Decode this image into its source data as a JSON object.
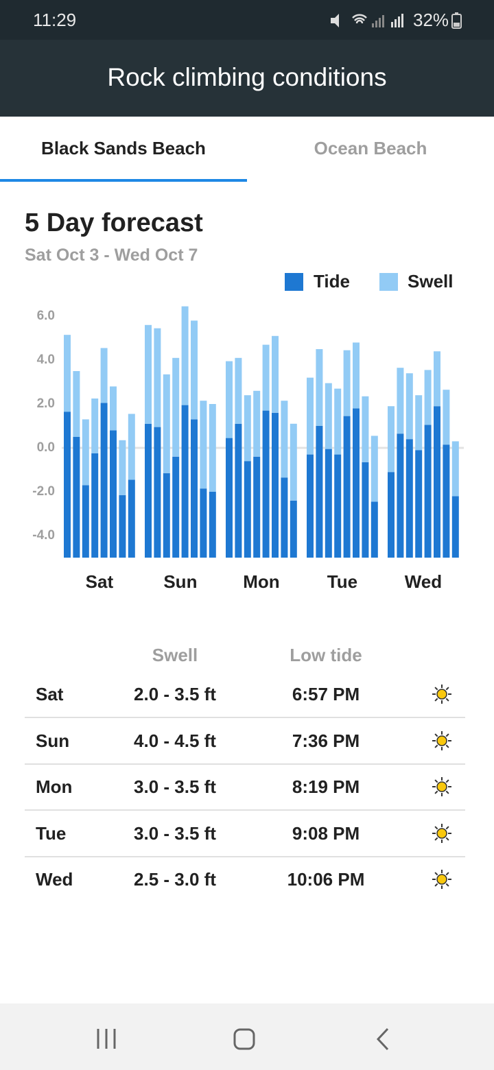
{
  "status_bar": {
    "time": "11:29",
    "battery": "32%"
  },
  "app_bar": {
    "title": "Rock climbing conditions"
  },
  "tabs": [
    "Black Sands Beach",
    "Ocean Beach"
  ],
  "chart_data": {
    "type": "stacked-bar",
    "title": "5 Day forecast",
    "subtitle": "Sat Oct 3 - Wed Oct 7",
    "categories": [
      null,
      null,
      null,
      null,
      "Sat",
      null,
      null,
      null,
      null,
      null,
      null,
      null,
      "Sun",
      null,
      null,
      null,
      null,
      null,
      null,
      null,
      "Mon",
      null,
      null,
      null,
      null,
      null,
      null,
      null,
      "Tue",
      null,
      null,
      null,
      null,
      null,
      null,
      null,
      "Wed",
      null,
      null,
      null
    ],
    "series": [
      {
        "name": "Tide",
        "color": "#1e78d2",
        "values": [
          1.65,
          0.5,
          -1.7,
          -0.25,
          2.05,
          0.8,
          -2.15,
          -1.45,
          1.1,
          0.95,
          -1.15,
          -0.4,
          1.95,
          1.3,
          -1.85,
          -2.0,
          0.45,
          1.1,
          -0.6,
          -0.4,
          1.7,
          1.6,
          -1.35,
          -2.4,
          -0.3,
          1.0,
          -0.05,
          -0.3,
          1.45,
          1.8,
          -0.65,
          -2.45,
          -1.1,
          0.65,
          0.4,
          -0.1,
          1.05,
          1.9,
          0.15,
          -2.2
        ]
      },
      {
        "name": "Swell",
        "color": "#92cbf5",
        "values": [
          3.5,
          3.0,
          3.0,
          2.5,
          2.5,
          2.0,
          2.5,
          3.0,
          4.5,
          4.5,
          4.5,
          4.5,
          4.5,
          4.5,
          4.0,
          4.0,
          3.5,
          3.0,
          3.0,
          3.0,
          3.0,
          3.5,
          3.5,
          3.5,
          3.5,
          3.5,
          3.0,
          3.0,
          3.0,
          3.0,
          3.0,
          3.0,
          3.0,
          3.0,
          3.0,
          2.5,
          2.5,
          2.5,
          2.5,
          2.5
        ]
      }
    ],
    "ylim": [
      -5,
      6.5
    ],
    "yticks": [
      {
        "value": -4,
        "label": "-4.0"
      },
      {
        "value": -2,
        "label": "-2.0"
      },
      {
        "value": 0,
        "label": "0.0"
      },
      {
        "value": 2,
        "label": "2.0"
      },
      {
        "value": 4,
        "label": "4.0"
      },
      {
        "value": 6,
        "label": "6.0"
      }
    ]
  },
  "table": {
    "headers": [
      "Swell",
      "Low tide"
    ],
    "rows": [
      [
        "Sat",
        "2.0 - 3.5 ft",
        "6:57 PM"
      ],
      [
        "Sun",
        "4.0 - 4.5 ft",
        "7:36 PM"
      ],
      [
        "Mon",
        "3.0 - 3.5 ft",
        "8:19 PM"
      ],
      [
        "Tue",
        "3.0 - 3.5 ft",
        "9:08 PM"
      ],
      [
        "Wed",
        "2.5 - 3.0 ft",
        "10:06 PM"
      ]
    ]
  }
}
